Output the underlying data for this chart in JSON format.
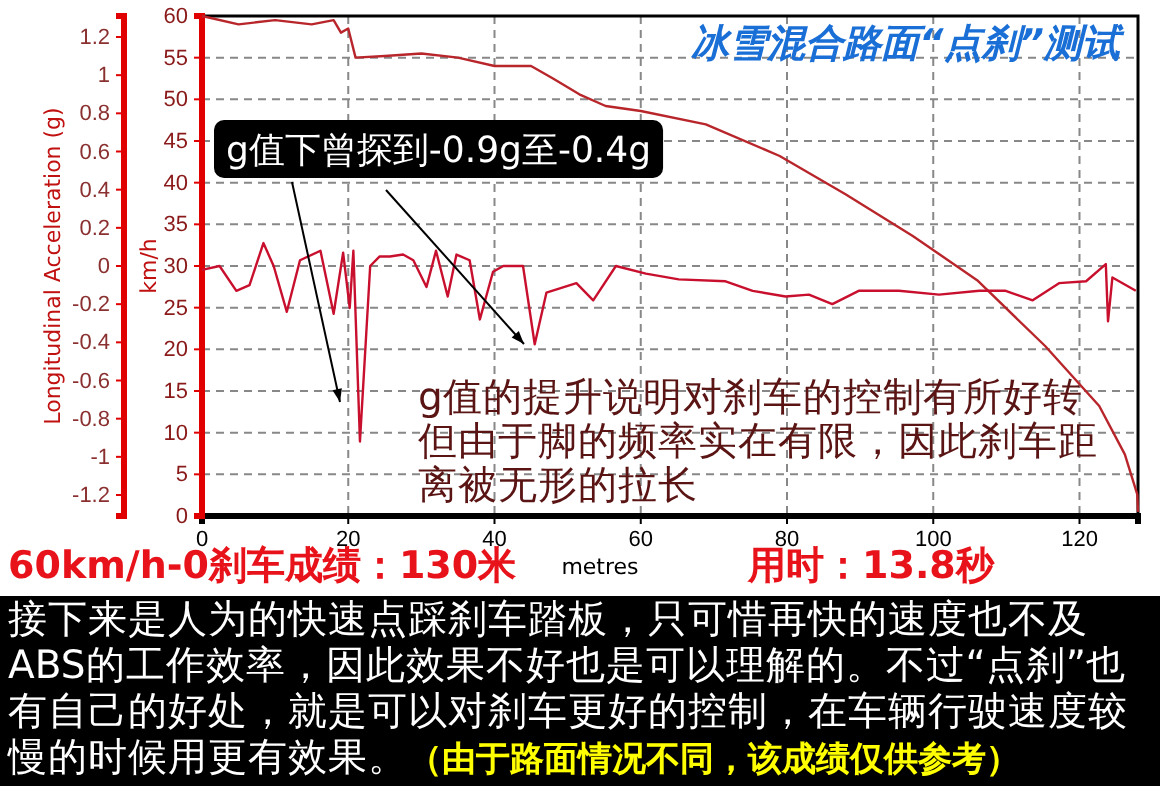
{
  "chart_data": {
    "type": "line",
    "title": "冰雪混合路面“点刹”测试",
    "xlabel": "metres",
    "ylabel": "Longitudinal Acceleration (g)",
    "y2label": "km/h",
    "xlim": [
      0,
      128
    ],
    "xticks": [
      0,
      20,
      40,
      60,
      80,
      100,
      120
    ],
    "ylim": [
      -1.31,
      1.31
    ],
    "yticks": [
      -1.2,
      -1,
      -0.8,
      -0.6,
      -0.4,
      -0.2,
      0,
      0.2,
      0.4,
      0.6,
      0.8,
      1,
      1.2
    ],
    "y2lim": [
      0,
      60
    ],
    "y2ticks": [
      0,
      5,
      10,
      15,
      20,
      25,
      30,
      35,
      40,
      45,
      50,
      55,
      60
    ],
    "grid": true,
    "line_style": "solid",
    "series": [
      {
        "color": "#b8262b",
        "axis": "y2",
        "x": [
          0,
          5,
          10,
          15,
          18,
          19,
          20,
          21,
          25,
          30,
          35,
          40,
          45,
          48,
          51.6,
          55.2,
          60,
          68.9,
          79,
          88,
          97.2,
          106,
          115.3,
          122.7,
          126.2,
          127.9,
          128
        ],
        "values": [
          60,
          59,
          59.5,
          59,
          59.5,
          58,
          58.5,
          55,
          55.2,
          55.5,
          55,
          54,
          54,
          52.5,
          50.6,
          49.2,
          48.6,
          47,
          43.2,
          38.6,
          33.6,
          28.3,
          20.4,
          13.2,
          7.4,
          2.6,
          0.5
        ]
      },
      {
        "color": "#c8102e",
        "axis": "y",
        "x": [
          0,
          2.4,
          4.7,
          6.5,
          8.4,
          9.8,
          11.6,
          13.4,
          16.2,
          18,
          19.3,
          20.2,
          20.7,
          21.6,
          23,
          24.3,
          25.7,
          27.5,
          28.9,
          30.7,
          32,
          33.6,
          34.8,
          36.6,
          38,
          39.8,
          41.2,
          43.9,
          45.5,
          47.1,
          51.2,
          53.5,
          56.6,
          60.7,
          65.2,
          71.6,
          75.3,
          79.8,
          83,
          86.2,
          89.8,
          95.3,
          100.8,
          106.3,
          109.9,
          113.6,
          117.2,
          120.9,
          123.6,
          123.9,
          124.5,
          127.7
        ],
        "values": [
          -0.02,
          0,
          -0.13,
          -0.1,
          0.12,
          0,
          -0.24,
          0.03,
          0.08,
          -0.25,
          0.07,
          -0.22,
          0.08,
          -0.92,
          0,
          0.05,
          0.05,
          0.06,
          0.03,
          -0.11,
          0.08,
          -0.16,
          0.06,
          0.03,
          -0.28,
          -0.03,
          0,
          0,
          -0.41,
          -0.14,
          -0.09,
          -0.18,
          0,
          -0.04,
          -0.07,
          -0.08,
          -0.13,
          -0.16,
          -0.15,
          -0.2,
          -0.13,
          -0.13,
          -0.15,
          -0.13,
          -0.13,
          -0.18,
          -0.09,
          -0.08,
          0.01,
          -0.29,
          -0.06,
          -0.13
        ]
      }
    ],
    "annotations": [
      "g值下曾探到-0.9g至-0.4g",
      "g值的提升说明对刹车的控制有所好转但由于脚的频率实在有限，因此刹车距离被无形的拉长",
      "60km/h-0刹车成绩：130米",
      "用时：13.8秒",
      "接下来是人为的快速点踩刹车踏板，只可惜再快的速度也不及ABS的工作效率，因此效果不好也是可以理解的。不过“点刹”也有自己的好处，就是可以对刹车更好的控制，在车辆行驶速度较慢的时候用更有效果。",
      "（由于路面情况不同，该成绩仅供参考）"
    ]
  }
}
